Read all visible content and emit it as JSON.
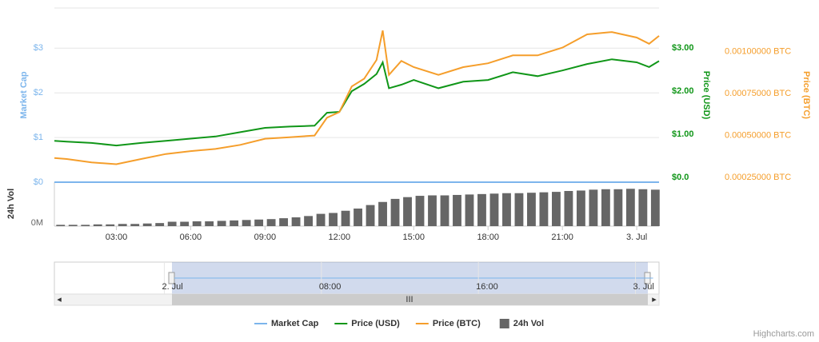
{
  "chart_data": {
    "type": "line",
    "x": [
      0.5,
      1,
      2,
      3,
      4,
      5,
      6,
      7,
      8,
      9,
      10,
      11,
      11.5,
      12,
      12.5,
      13,
      13.5,
      13.75,
      14,
      14.5,
      15,
      16,
      17,
      18,
      19,
      20,
      21,
      22,
      23,
      24,
      24.5,
      24.9
    ],
    "xlim": [
      0.5,
      24.9
    ],
    "xticks": [
      {
        "value": 3,
        "label": "03:00"
      },
      {
        "value": 6,
        "label": "06:00"
      },
      {
        "value": 9,
        "label": "09:00"
      },
      {
        "value": 12,
        "label": "12:00"
      },
      {
        "value": 15,
        "label": "15:00"
      },
      {
        "value": 18,
        "label": "18:00"
      },
      {
        "value": 21,
        "label": "21:00"
      },
      {
        "value": 24,
        "label": "3. Jul"
      }
    ],
    "ylabel": "Market Cap",
    "ylim": [
      0,
      3.9
    ],
    "yticks": [
      {
        "value": 0,
        "label": "$0"
      },
      {
        "value": 1,
        "label": "$1"
      },
      {
        "value": 2,
        "label": "$2"
      },
      {
        "value": 3,
        "label": "$3"
      }
    ],
    "y2label": "Price (USD)",
    "y2lim": [
      -0.11,
      3.93
    ],
    "y2ticks": [
      {
        "value": 0,
        "label": "$0.0"
      },
      {
        "value": 1,
        "label": "$1.00"
      },
      {
        "value": 2,
        "label": "$2.00"
      },
      {
        "value": 3,
        "label": "$3.00"
      }
    ],
    "y3label": "Price (BTC)",
    "y3lim": [
      0.000222,
      0.001259
    ],
    "y3ticks": [
      {
        "value": 0.00025,
        "label": "0.00025000 BTC"
      },
      {
        "value": 0.0005,
        "label": "0.00050000 BTC"
      },
      {
        "value": 0.00075,
        "label": "0.00075000 BTC"
      },
      {
        "value": 0.001,
        "label": "0.00100000 BTC"
      }
    ],
    "vollabel": "24h Vol",
    "vollim": [
      0,
      10
    ],
    "volticks": [
      {
        "value": 0,
        "label": "0M"
      }
    ],
    "grid": true,
    "series": [
      {
        "name": "Market Cap",
        "color": "#7cb5ec",
        "axis": "y",
        "values": [
          0,
          0,
          0,
          0,
          0,
          0,
          0,
          0,
          0,
          0,
          0,
          0,
          0,
          0,
          0,
          0,
          0,
          0,
          0,
          0,
          0,
          0,
          0,
          0,
          0,
          0,
          0,
          0,
          0,
          0,
          0,
          0
        ]
      },
      {
        "name": "Price (USD)",
        "color": "#109618",
        "axis": "y2",
        "values": [
          0.85,
          0.83,
          0.8,
          0.74,
          0.8,
          0.85,
          0.9,
          0.95,
          1.05,
          1.15,
          1.18,
          1.2,
          1.5,
          1.52,
          2.0,
          2.17,
          2.4,
          2.67,
          2.07,
          2.15,
          2.26,
          2.07,
          2.22,
          2.26,
          2.44,
          2.35,
          2.48,
          2.63,
          2.74,
          2.67,
          2.56,
          2.7
        ]
      },
      {
        "name": "Price (BTC)",
        "color": "#f59e2b",
        "axis": "y3",
        "values": [
          0.000366,
          0.00036,
          0.00034,
          0.000329,
          0.00036,
          0.00039,
          0.000407,
          0.00042,
          0.000444,
          0.000481,
          0.00049,
          0.0005,
          0.000606,
          0.000639,
          0.000792,
          0.000838,
          0.00095,
          0.001125,
          0.000861,
          0.000944,
          0.000907,
          0.000861,
          0.000907,
          0.00093,
          0.000977,
          0.000977,
          0.001023,
          0.001102,
          0.001116,
          0.001083,
          0.001046,
          0.001093
        ]
      },
      {
        "name": "24h Vol",
        "color": "#666666",
        "axis": "vol",
        "x": [
          0.75,
          1.25,
          1.75,
          2.25,
          2.75,
          3.25,
          3.75,
          4.25,
          4.75,
          5.25,
          5.75,
          6.25,
          6.75,
          7.25,
          7.75,
          8.25,
          8.75,
          9.25,
          9.75,
          10.25,
          10.75,
          11.25,
          11.75,
          12.25,
          12.75,
          13.25,
          13.75,
          14.25,
          14.75,
          15.25,
          15.75,
          16.25,
          16.75,
          17.25,
          17.75,
          18.25,
          18.75,
          19.25,
          19.75,
          20.25,
          20.75,
          21.25,
          21.75,
          22.25,
          22.75,
          23.25,
          23.75,
          24.25,
          24.75
        ],
        "values": [
          0.3,
          0.3,
          0.3,
          0.4,
          0.4,
          0.5,
          0.5,
          0.6,
          0.7,
          1.0,
          1.0,
          1.1,
          1.1,
          1.2,
          1.3,
          1.4,
          1.5,
          1.6,
          1.8,
          2.0,
          2.3,
          2.8,
          3.0,
          3.5,
          4.0,
          4.8,
          5.5,
          6.2,
          6.6,
          6.9,
          7.0,
          7.0,
          7.1,
          7.2,
          7.3,
          7.4,
          7.5,
          7.5,
          7.6,
          7.7,
          7.8,
          8.0,
          8.1,
          8.3,
          8.4,
          8.4,
          8.5,
          8.4,
          8.3
        ]
      }
    ],
    "navigator": {
      "xlim": [
        -5.6,
        25.2
      ],
      "xticks": [
        {
          "value": 0,
          "label": "2. Jul"
        },
        {
          "value": 8,
          "label": "08:00"
        },
        {
          "value": 16,
          "label": "16:00"
        },
        {
          "value": 24,
          "label": "3. Jul"
        }
      ]
    },
    "credits": "Highcharts.com"
  }
}
